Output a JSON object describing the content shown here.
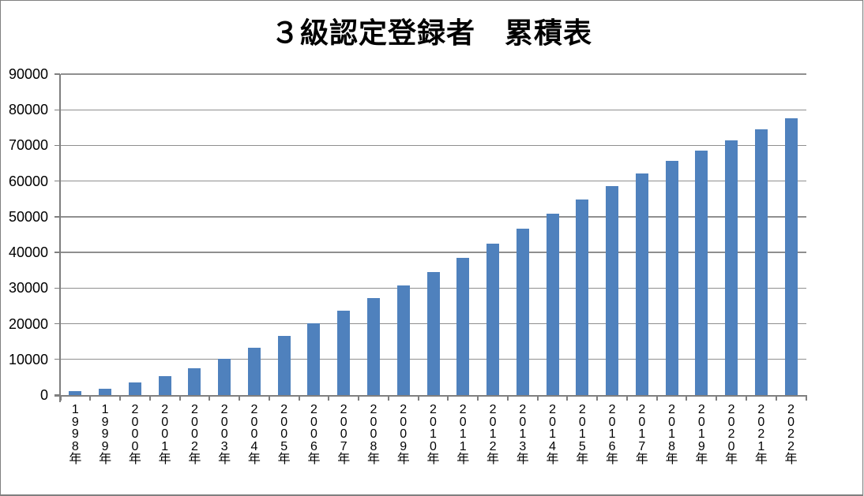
{
  "chart": {
    "title": "３級認定登録者　累積表"
  },
  "chart_data": {
    "type": "bar",
    "title": "３級認定登録者　累積表",
    "categories": [
      "1998年",
      "1999年",
      "2000年",
      "2001年",
      "2002年",
      "2003年",
      "2004年",
      "2005年",
      "2006年",
      "2007年",
      "2008年",
      "2009年",
      "2010年",
      "2011年",
      "2012年",
      "2013年",
      "2014年",
      "2015年",
      "2016年",
      "2017年",
      "2018年",
      "2019年",
      "2020年",
      "2021年",
      "2022年"
    ],
    "values": [
      1200,
      1800,
      3600,
      5300,
      7600,
      10200,
      13300,
      16500,
      20100,
      23700,
      27200,
      30800,
      34500,
      38400,
      42400,
      46700,
      50800,
      54900,
      58600,
      62100,
      65700,
      68500,
      71400,
      74500,
      77600
    ],
    "xlabel": "",
    "ylabel": "",
    "ylim": [
      0,
      90000
    ],
    "yticks": [
      0,
      10000,
      20000,
      30000,
      40000,
      50000,
      60000,
      70000,
      80000,
      90000
    ],
    "ytick_labels": [
      "0",
      "10000",
      "20000",
      "30000",
      "40000",
      "50000",
      "60000",
      "70000",
      "80000",
      "90000"
    ],
    "grid": true,
    "legend_position": "none",
    "colors": {
      "bar": "#4F81BD",
      "gridline": "#8F8F8F",
      "axis": "#7F7F7F",
      "text": "#000000",
      "background": "#FFFFFF",
      "border": "#808080"
    }
  }
}
